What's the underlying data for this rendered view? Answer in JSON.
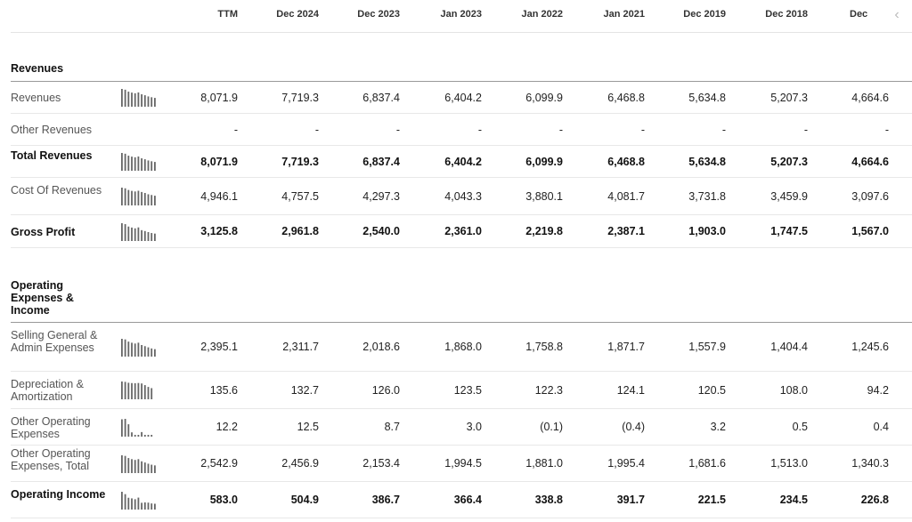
{
  "columns": [
    "TTM",
    "Dec 2024",
    "Dec 2023",
    "Jan 2023",
    "Jan 2022",
    "Jan 2021",
    "Dec 2019",
    "Dec 2018",
    "Dec"
  ],
  "sections": [
    {
      "title": "Revenues",
      "rows": [
        {
          "label": "Revenues",
          "bold": false,
          "values": [
            "8,071.9",
            "7,719.3",
            "6,837.4",
            "6,404.2",
            "6,099.9",
            "6,468.8",
            "5,634.8",
            "5,207.3",
            "4,664.6"
          ]
        },
        {
          "label": "Other Revenues",
          "bold": false,
          "values": [
            "-",
            "-",
            "-",
            "-",
            "-",
            "-",
            "-",
            "-",
            "-"
          ]
        },
        {
          "label": "Total Revenues",
          "bold": true,
          "values": [
            "8,071.9",
            "7,719.3",
            "6,837.4",
            "6,404.2",
            "6,099.9",
            "6,468.8",
            "5,634.8",
            "5,207.3",
            "4,664.6"
          ]
        },
        {
          "label": "Cost Of Revenues",
          "bold": false,
          "values": [
            "4,946.1",
            "4,757.5",
            "4,297.3",
            "4,043.3",
            "3,880.1",
            "4,081.7",
            "3,731.8",
            "3,459.9",
            "3,097.6"
          ]
        },
        {
          "label": "Gross Profit",
          "bold": true,
          "values": [
            "3,125.8",
            "2,961.8",
            "2,540.0",
            "2,361.0",
            "2,219.8",
            "2,387.1",
            "1,903.0",
            "1,747.5",
            "1,567.0"
          ]
        }
      ]
    },
    {
      "title": "Operating Expenses & Income",
      "rows": [
        {
          "label": "Selling General & Admin Expenses",
          "bold": false,
          "values": [
            "2,395.1",
            "2,311.7",
            "2,018.6",
            "1,868.0",
            "1,758.8",
            "1,871.7",
            "1,557.9",
            "1,404.4",
            "1,245.6"
          ]
        },
        {
          "label": "Depreciation & Amortization",
          "bold": false,
          "values": [
            "135.6",
            "132.7",
            "126.0",
            "123.5",
            "122.3",
            "124.1",
            "120.5",
            "108.0",
            "94.2"
          ]
        },
        {
          "label": "Other Operating Expenses",
          "bold": false,
          "values": [
            "12.2",
            "12.5",
            "8.7",
            "3.0",
            "(0.1)",
            "(0.4)",
            "3.2",
            "0.5",
            "0.4"
          ]
        },
        {
          "label": "Other Operating Expenses, Total",
          "bold": false,
          "values": [
            "2,542.9",
            "2,456.9",
            "2,153.4",
            "1,994.5",
            "1,881.0",
            "1,995.4",
            "1,681.6",
            "1,513.0",
            "1,340.3"
          ]
        },
        {
          "label": "Operating Income",
          "bold": true,
          "values": [
            "583.0",
            "504.9",
            "386.7",
            "366.4",
            "338.8",
            "391.7",
            "221.5",
            "234.5",
            "226.8"
          ]
        }
      ]
    }
  ],
  "sparklines": [
    [
      8071.9,
      7719.3,
      6837.4,
      6404.2,
      6099.9,
      6468.8,
      5634.8,
      5207.3,
      4664.6,
      4300,
      4000
    ],
    [
      0,
      0,
      0,
      0,
      0,
      0,
      0,
      0,
      0,
      0,
      0
    ],
    [
      8071.9,
      7719.3,
      6837.4,
      6404.2,
      6099.9,
      6468.8,
      5634.8,
      5207.3,
      4664.6,
      4300,
      4000
    ],
    [
      4946.1,
      4757.5,
      4297.3,
      4043.3,
      3880.1,
      4081.7,
      3731.8,
      3459.9,
      3097.6,
      2900,
      2700
    ],
    [
      3125.8,
      2961.8,
      2540.0,
      2361.0,
      2219.8,
      2387.1,
      1903.0,
      1747.5,
      1567.0,
      1400,
      1300
    ],
    [
      2395.1,
      2311.7,
      2018.6,
      1868.0,
      1758.8,
      1871.7,
      1557.9,
      1404.4,
      1245.6,
      1100,
      1000
    ],
    [
      135.6,
      132.7,
      126.0,
      123.5,
      122.3,
      124.1,
      120.5,
      108.0,
      94.2,
      85
    ],
    [
      12.2,
      12.5,
      8.7,
      3.0,
      -0.1,
      -0.4,
      3.2,
      0.5,
      0.4,
      0.2
    ],
    [
      2542.9,
      2456.9,
      2153.4,
      1994.5,
      1881.0,
      1995.4,
      1681.6,
      1513.0,
      1340.3,
      1200,
      1100
    ],
    [
      583.0,
      504.9,
      386.7,
      366.4,
      338.8,
      391.7,
      221.5,
      234.5,
      226.8,
      200,
      190
    ]
  ],
  "colors": {
    "spark_bar": "#666666",
    "rule": "#999999",
    "row_border": "#e8e8e8"
  },
  "icons": {
    "scroll_left": "chevron-left-icon"
  }
}
